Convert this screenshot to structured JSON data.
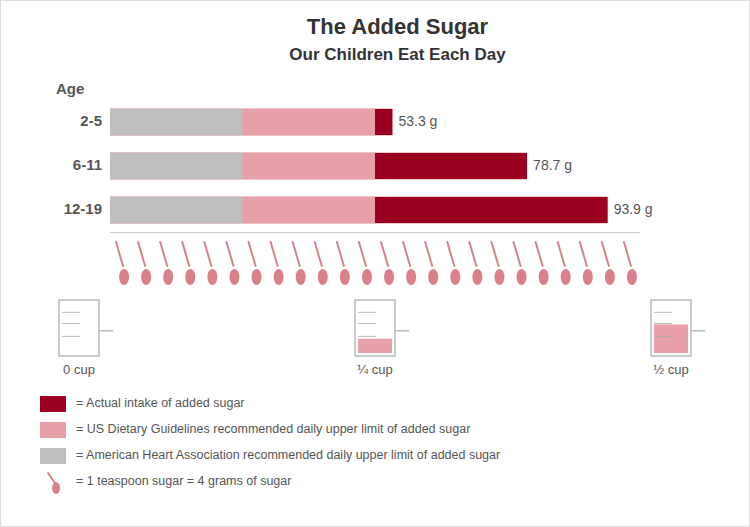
{
  "chart_data": {
    "type": "bar",
    "orientation": "horizontal",
    "title": "The Added Sugar",
    "subtitle": "Our Children Eat Each Day",
    "y_label": "Age",
    "categories": [
      "2-5",
      "6-11",
      "12-19"
    ],
    "series": [
      {
        "name": "= Actual intake of added sugar",
        "color": "#9B0020",
        "values": [
          53.3,
          78.7,
          93.9
        ],
        "value_labels": [
          "53.3 g",
          "78.7 g",
          "93.9 g"
        ]
      },
      {
        "name": "= US Dietary Guidelines recommended daily upper limit of added sugar",
        "color": "#E8A0A8",
        "values": [
          50,
          50,
          50
        ]
      },
      {
        "name": "= American Heart Association recommended daily upper limit of added sugar",
        "color": "#BEBEBE",
        "values": [
          25,
          25,
          25
        ]
      }
    ],
    "xlim": [
      0,
      100
    ],
    "tick_labels": false,
    "grid": false,
    "data_labels": true,
    "legend": "bottom",
    "spoons": {
      "count": 24,
      "color": "#D9808A",
      "label": "= 1 teaspoon sugar = 4 grams of sugar"
    },
    "cups": {
      "color": "#E8A0A8",
      "items": [
        {
          "label": "0 cup",
          "fill": 0
        },
        {
          "label": "¼ cup",
          "fill": 0.3
        },
        {
          "label": "½ cup",
          "fill": 0.6
        }
      ]
    }
  }
}
